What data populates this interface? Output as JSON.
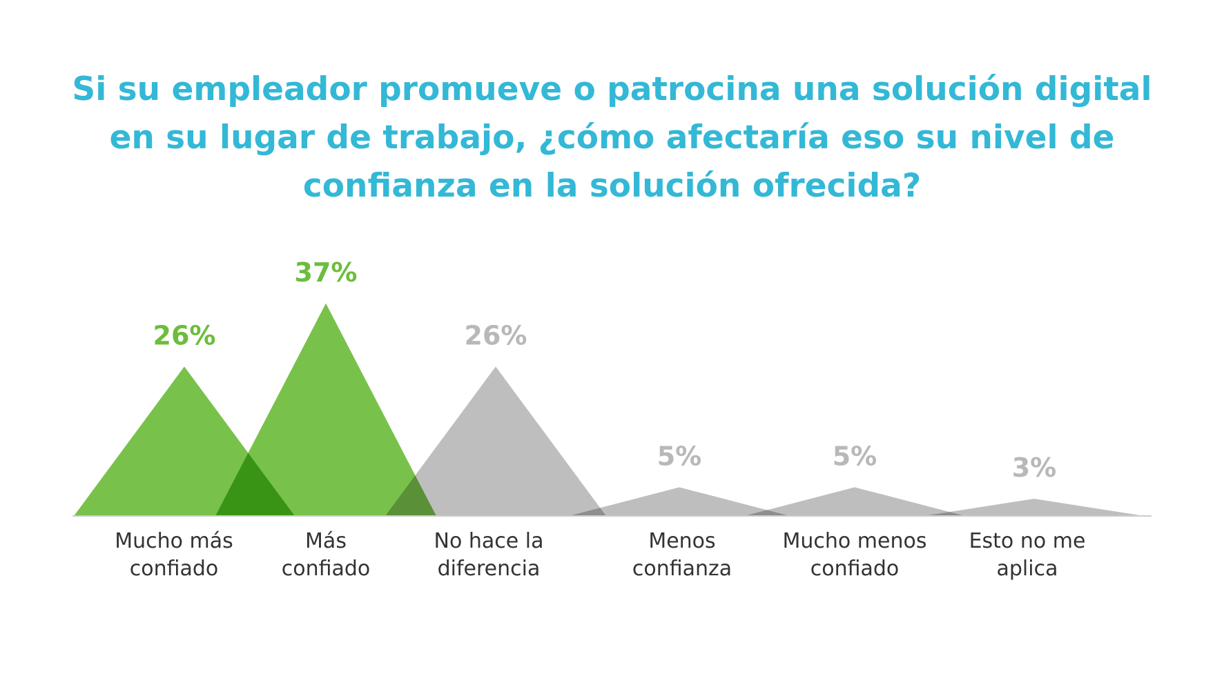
{
  "title_lines": [
    "Si su empleador promueve o patrocina una solución digital",
    "en su lugar de trabajo, ¿cómo afectaría eso su nivel de",
    "confianza en la solución ofrecida?"
  ],
  "colors": {
    "title": "#33b8d6",
    "positive": "#6cbd3c",
    "positive_label": "#6cbd3c",
    "neutral": "#b8b8b8",
    "neutral_label": "#b8b8b8",
    "axis": "#cccccc",
    "category_text": "#333333"
  },
  "chart_data": {
    "type": "area",
    "title": "Si su empleador promueve o patrocina una solución digital en su lugar de trabajo, ¿cómo afectaría eso su nivel de confianza en la solución ofrecida?",
    "categories": [
      [
        "Mucho más",
        "confiado"
      ],
      [
        "Más",
        "confiado"
      ],
      [
        "No hace la",
        "diferencia"
      ],
      [
        "Menos",
        "confianza"
      ],
      [
        "Mucho menos",
        "confiado"
      ],
      [
        "Esto no me",
        "aplica"
      ]
    ],
    "values": [
      26,
      37,
      26,
      5,
      5,
      3
    ],
    "value_labels": [
      "26%",
      "37%",
      "26%",
      "5%",
      "5%",
      "3%"
    ],
    "groups": [
      "positive",
      "positive",
      "neutral",
      "neutral",
      "neutral",
      "neutral"
    ],
    "ylim": [
      0,
      37
    ],
    "grid": false,
    "legend": "none"
  }
}
